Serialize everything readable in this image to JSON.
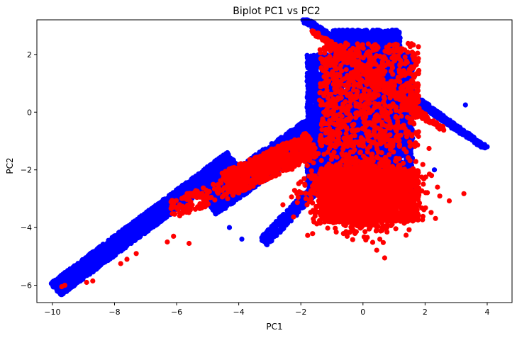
{
  "chart_data": {
    "type": "scatter",
    "title": "Biplot PC1 vs PC2",
    "xlabel": "PC1",
    "ylabel": "PC2",
    "xlim": [
      -10.5,
      4.8
    ],
    "ylim": [
      -6.6,
      3.2
    ],
    "xticks": [
      -10,
      -8,
      -6,
      -4,
      -2,
      0,
      2,
      4
    ],
    "yticks": [
      -6,
      -4,
      -2,
      0,
      2
    ],
    "grid": false,
    "legend": "none",
    "series": [
      {
        "color": "#0000ff",
        "regions": [
          {
            "shape": "band",
            "from": [
              -9.9,
              -6.15
            ],
            "to": [
              -4.2,
              -1.6
            ],
            "width": 0.55,
            "n": 2600
          },
          {
            "shape": "band",
            "from": [
              -5.0,
              -3.2
            ],
            "to": [
              -1.4,
              -0.5
            ],
            "width": 0.9,
            "n": 1500
          },
          {
            "shape": "band",
            "from": [
              -3.2,
              -4.5
            ],
            "to": [
              -0.6,
              -1.6
            ],
            "width": 0.35,
            "n": 500
          },
          {
            "shape": "box",
            "x": [
              -1.8,
              1.6
            ],
            "y": [
              -2.8,
              2.0
            ],
            "n": 5000
          },
          {
            "shape": "stripes",
            "count": 12,
            "x0": [
              -1.0,
              3.9
            ],
            "y0": [
              2.6,
              -1.2
            ],
            "dx": 2.1,
            "dy": -1.5,
            "spacing": 0.42,
            "n": 3600
          },
          {
            "shape": "box",
            "x": [
              -1.0,
              1.2
            ],
            "y": [
              2.0,
              2.85
            ],
            "n": 700
          }
        ],
        "points": [
          [
            -9.75,
            -6.15
          ],
          [
            -9.6,
            -6.2
          ],
          [
            -9.0,
            -5.7
          ],
          [
            -0.5,
            2.85
          ],
          [
            0.5,
            2.5
          ],
          [
            4.0,
            -1.2
          ],
          [
            3.3,
            0.25
          ],
          [
            2.3,
            -2.0
          ],
          [
            -3.9,
            -4.4
          ],
          [
            -4.3,
            -4.0
          ]
        ]
      },
      {
        "color": "#ff0000",
        "regions": [
          {
            "shape": "blob",
            "center": [
              0.0,
              -2.8
            ],
            "spread": [
              0.8,
              0.6
            ],
            "n": 2000
          },
          {
            "shape": "box",
            "x": [
              -1.4,
              1.8
            ],
            "y": [
              -3.8,
              -2.0
            ],
            "n": 900
          },
          {
            "shape": "band",
            "from": [
              -4.4,
              -2.5
            ],
            "to": [
              -1.6,
              -1.1
            ],
            "width": 0.9,
            "n": 700
          },
          {
            "shape": "band",
            "from": [
              -6.2,
              -3.4
            ],
            "to": [
              -4.0,
              -2.5
            ],
            "width": 0.7,
            "n": 120
          },
          {
            "shape": "box",
            "x": [
              -1.4,
              1.8
            ],
            "y": [
              -1.2,
              2.4
            ],
            "n": 900
          },
          {
            "shape": "stripes",
            "count": 6,
            "x0": [
              -0.3,
              2.6
            ],
            "y0": [
              1.9,
              -0.6
            ],
            "dx": 1.5,
            "dy": -1.0,
            "spacing": 0.45,
            "n": 500
          }
        ],
        "points": [
          [
            -9.6,
            -6.0
          ],
          [
            -9.7,
            -6.05
          ],
          [
            -8.9,
            -5.9
          ],
          [
            -8.7,
            -5.85
          ],
          [
            -7.6,
            -5.1
          ],
          [
            -7.8,
            -5.25
          ],
          [
            -7.3,
            -4.9
          ],
          [
            -6.3,
            -4.5
          ],
          [
            -6.1,
            -4.3
          ],
          [
            -5.6,
            -4.55
          ],
          [
            1.6,
            1.95
          ],
          [
            0.2,
            -4.05
          ],
          [
            2.4,
            -2.6
          ],
          [
            -0.3,
            -3.9
          ]
        ]
      }
    ]
  }
}
